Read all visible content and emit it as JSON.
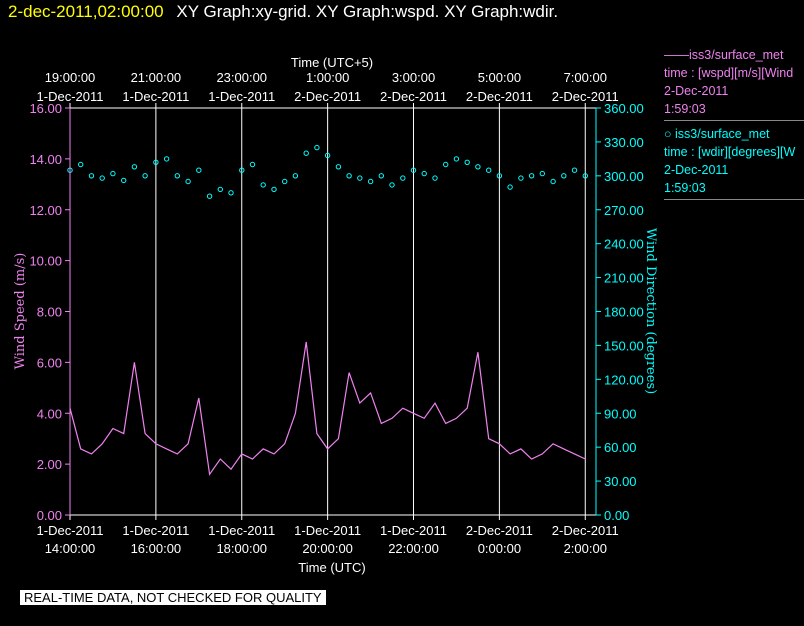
{
  "title": {
    "timestamp": "2-dec-2011,02:00:00",
    "graphs": "XY Graph:xy-grid.  XY Graph:wspd.  XY Graph:wdir."
  },
  "legend": {
    "wspd": {
      "line1": "iss3/surface_met",
      "line2": "time : [wspd][m/s][Wind",
      "line3": "2-Dec-2011",
      "line4": "1:59:03"
    },
    "wdir": {
      "line1": "iss3/surface_met",
      "line2": "time : [wdir][degrees][W",
      "line3": "2-Dec-2011",
      "line4": "1:59:03"
    }
  },
  "quality_note": "REAL-TIME DATA, NOT CHECKED FOR QUALITY",
  "colors": {
    "wspd": "#ee82ee",
    "wdir": "#00ffff",
    "grid": "#ffffff",
    "background": "#000000"
  },
  "chart_data": {
    "type": "line",
    "grid": true,
    "legend_position": "right",
    "x_bottom": {
      "label": "Time (UTC)",
      "range_hours": [
        14,
        26.25
      ],
      "ticks": [
        {
          "hour": 14,
          "date": "1-Dec-2011",
          "time": "14:00:00"
        },
        {
          "hour": 16,
          "date": "1-Dec-2011",
          "time": "16:00:00"
        },
        {
          "hour": 18,
          "date": "1-Dec-2011",
          "time": "18:00:00"
        },
        {
          "hour": 20,
          "date": "1-Dec-2011",
          "time": "20:00:00"
        },
        {
          "hour": 22,
          "date": "1-Dec-2011",
          "time": "22:00:00"
        },
        {
          "hour": 24,
          "date": "2-Dec-2011",
          "time": "0:00:00"
        },
        {
          "hour": 26,
          "date": "2-Dec-2011",
          "time": "2:00:00"
        }
      ]
    },
    "x_top": {
      "label": "Time (UTC+5)",
      "ticks": [
        {
          "hour": 14,
          "time": "19:00:00",
          "date": "1-Dec-2011"
        },
        {
          "hour": 16,
          "time": "21:00:00",
          "date": "1-Dec-2011"
        },
        {
          "hour": 18,
          "time": "23:00:00",
          "date": "1-Dec-2011"
        },
        {
          "hour": 20,
          "time": "1:00:00",
          "date": "2-Dec-2011"
        },
        {
          "hour": 22,
          "time": "3:00:00",
          "date": "2-Dec-2011"
        },
        {
          "hour": 24,
          "time": "5:00:00",
          "date": "2-Dec-2011"
        },
        {
          "hour": 26,
          "time": "7:00:00",
          "date": "2-Dec-2011"
        }
      ]
    },
    "y_left": {
      "label": "Wind Speed (m/s)",
      "range": [
        0,
        16
      ],
      "ticks": [
        "0.00",
        "2.00",
        "4.00",
        "6.00",
        "8.00",
        "10.00",
        "12.00",
        "14.00",
        "16.00"
      ]
    },
    "y_right": {
      "label": "Wind Direction (degrees)",
      "range": [
        0,
        360
      ],
      "ticks": [
        "0.00",
        "30.00",
        "60.00",
        "90.00",
        "120.00",
        "150.00",
        "180.00",
        "210.00",
        "240.00",
        "270.00",
        "300.00",
        "330.00",
        "360.00"
      ]
    },
    "series": [
      {
        "name": "iss3/surface_met",
        "style": "line",
        "axis": "left",
        "x": [
          14.0,
          14.25,
          14.5,
          14.75,
          15.0,
          15.25,
          15.5,
          15.75,
          16.0,
          16.25,
          16.5,
          16.75,
          17.0,
          17.25,
          17.5,
          17.75,
          18.0,
          18.25,
          18.5,
          18.75,
          19.0,
          19.25,
          19.5,
          19.75,
          20.0,
          20.25,
          20.5,
          20.75,
          21.0,
          21.25,
          21.5,
          21.75,
          22.0,
          22.25,
          22.5,
          22.75,
          23.0,
          23.25,
          23.5,
          23.75,
          24.0,
          24.25,
          24.5,
          24.75,
          25.0,
          25.25,
          25.5,
          25.75,
          26.0
        ],
        "y": [
          4.2,
          2.6,
          2.4,
          2.8,
          3.4,
          3.2,
          6.0,
          3.2,
          2.8,
          2.6,
          2.4,
          2.8,
          4.6,
          1.6,
          2.2,
          1.8,
          2.4,
          2.2,
          2.6,
          2.4,
          2.8,
          4.0,
          6.8,
          3.2,
          2.6,
          3.0,
          5.6,
          4.4,
          4.8,
          3.6,
          3.8,
          4.2,
          4.0,
          3.8,
          4.4,
          3.6,
          3.8,
          4.2,
          6.4,
          3.0,
          2.8,
          2.4,
          2.6,
          2.2,
          2.4,
          2.8,
          2.6,
          2.4,
          2.2
        ]
      },
      {
        "name": "iss3/surface_met",
        "style": "scatter",
        "axis": "right",
        "x": [
          14.0,
          14.25,
          14.5,
          14.75,
          15.0,
          15.25,
          15.5,
          15.75,
          16.0,
          16.25,
          16.5,
          16.75,
          17.0,
          17.25,
          17.5,
          17.75,
          18.0,
          18.25,
          18.5,
          18.75,
          19.0,
          19.25,
          19.5,
          19.75,
          20.0,
          20.25,
          20.5,
          20.75,
          21.0,
          21.25,
          21.5,
          21.75,
          22.0,
          22.25,
          22.5,
          22.75,
          23.0,
          23.25,
          23.5,
          23.75,
          24.0,
          24.25,
          24.5,
          24.75,
          25.0,
          25.25,
          25.5,
          25.75,
          26.0
        ],
        "y": [
          305,
          310,
          300,
          298,
          302,
          296,
          308,
          300,
          312,
          315,
          300,
          295,
          305,
          282,
          288,
          285,
          305,
          310,
          292,
          288,
          295,
          300,
          320,
          325,
          318,
          308,
          300,
          298,
          295,
          300,
          292,
          298,
          305,
          302,
          298,
          310,
          315,
          312,
          308,
          305,
          300,
          290,
          298,
          300,
          302,
          295,
          300,
          305,
          300
        ]
      }
    ]
  }
}
